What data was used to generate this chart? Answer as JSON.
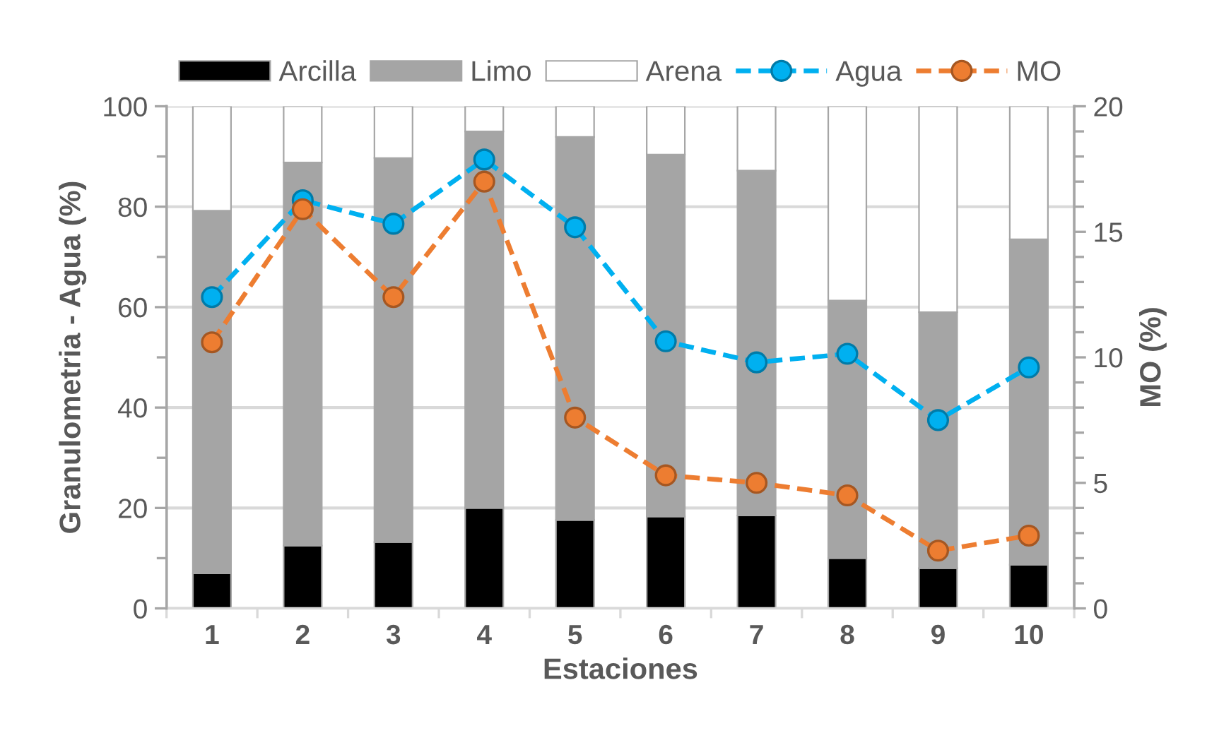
{
  "chart_data": {
    "type": "bar",
    "stacked": true,
    "xlabel": "Estaciones",
    "ylabel": "Granulometria - Agua (%)",
    "y2label": "MO (%)",
    "categories": [
      "1",
      "2",
      "3",
      "4",
      "5",
      "6",
      "7",
      "8",
      "9",
      "10"
    ],
    "series": [
      {
        "name": "Arcilla",
        "color": "#000000",
        "values": [
          7,
          12.5,
          13.2,
          20,
          17.6,
          18.3,
          18.5,
          10,
          8,
          8.7
        ]
      },
      {
        "name": "Limo",
        "color": "#a5a5a5",
        "values": [
          72.2,
          76.3,
          76.5,
          75,
          76.3,
          72.1,
          68.7,
          51.3,
          51,
          64.8
        ]
      },
      {
        "name": "Arena",
        "color": "#ffffff",
        "values": [
          20.8,
          11.2,
          10.3,
          5,
          6.1,
          9.6,
          12.8,
          38.7,
          41,
          26.5
        ]
      },
      {
        "name": "Agua",
        "type": "line",
        "color": "#00b0f0",
        "marker": "circle",
        "line_style": "dashed",
        "values": [
          62,
          81.3,
          76.6,
          89.4,
          75.9,
          53.2,
          49,
          50.7,
          37.5,
          48
        ]
      },
      {
        "name": "MO",
        "type": "line",
        "axis": "y2",
        "color": "#ed7d31",
        "marker": "circle",
        "line_style": "dashed",
        "values": [
          10.6,
          15.9,
          12.4,
          17,
          7.6,
          5.3,
          5,
          4.5,
          2.3,
          2.9
        ]
      }
    ],
    "ylim": [
      0,
      100
    ],
    "yticks": [
      0,
      {
        "value": 10,
        "label": null
      },
      20,
      {
        "value": 30,
        "label": null
      },
      40,
      {
        "value": 50,
        "label": null
      },
      60,
      {
        "value": 70,
        "label": null
      },
      80,
      {
        "value": 90,
        "label": null
      },
      100
    ],
    "y2lim": [
      0,
      20
    ],
    "y2ticks": [
      0,
      {
        "value": 1,
        "label": null
      },
      {
        "value": 2,
        "label": null
      },
      {
        "value": 3,
        "label": null
      },
      {
        "value": 4,
        "label": null
      },
      5,
      {
        "value": 6,
        "label": null
      },
      {
        "value": 7,
        "label": null
      },
      {
        "value": 8,
        "label": null
      },
      {
        "value": 9,
        "label": null
      },
      10,
      {
        "value": 11,
        "label": null
      },
      {
        "value": 12,
        "label": null
      },
      {
        "value": 13,
        "label": null
      },
      {
        "value": 14,
        "label": null
      },
      15,
      {
        "value": 16,
        "label": null
      },
      {
        "value": 17,
        "label": null
      },
      {
        "value": 18,
        "label": null
      },
      {
        "value": 19,
        "label": null
      },
      20
    ],
    "grid": "y",
    "legend": "top"
  }
}
